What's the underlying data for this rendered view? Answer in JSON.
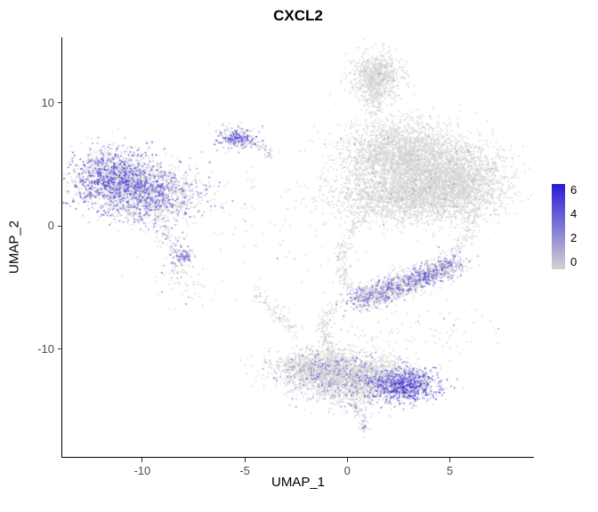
{
  "chart_data": {
    "type": "scatter",
    "title": "CXCL2",
    "xlabel": "UMAP_1",
    "ylabel": "UMAP_2",
    "x_range": [
      -13.9,
      9.1
    ],
    "y_range": [
      -18.8,
      15.3
    ],
    "x_ticks": [
      -10,
      -5,
      0,
      5
    ],
    "y_ticks": [
      -10,
      0,
      10
    ],
    "grid": false,
    "seed": 42,
    "legend": {
      "position": "right",
      "ticks": [
        0,
        2,
        4,
        6
      ],
      "vmin": 0,
      "vmax": 6,
      "color_low": "#d3d3d3",
      "color_high": "#2a1ad6"
    },
    "clusters": [
      {
        "name": "left-main-upper",
        "cx": -11.4,
        "cy": 3.9,
        "sx": 1.1,
        "sy": 1.15,
        "n": 1400,
        "frac": 0.5,
        "emax": 6
      },
      {
        "name": "left-main-lower",
        "cx": -9.6,
        "cy": 2.6,
        "sx": 1.2,
        "sy": 1.2,
        "n": 1400,
        "frac": 0.45,
        "emax": 5
      },
      {
        "name": "left-tail-knot",
        "cx": -8.0,
        "cy": -2.4,
        "sx": 0.25,
        "sy": 0.3,
        "n": 70,
        "frac": 0.75,
        "emax": 5
      },
      {
        "name": "small-top-left",
        "cx": -5.35,
        "cy": 7.1,
        "sx": 0.5,
        "sy": 0.45,
        "n": 260,
        "frac": 0.55,
        "emax": 6
      },
      {
        "name": "top-middle",
        "cx": 1.45,
        "cy": 12.1,
        "sx": 0.62,
        "sy": 0.95,
        "n": 800,
        "frac": 0.012,
        "emax": 3
      },
      {
        "name": "right-large-upper",
        "cx": 2.3,
        "cy": 5.8,
        "sx": 1.35,
        "sy": 1.35,
        "n": 1800,
        "frac": 0.015,
        "emax": 3
      },
      {
        "name": "right-large-mid",
        "cx": 4.3,
        "cy": 4.3,
        "sx": 1.5,
        "sy": 1.6,
        "n": 2200,
        "frac": 0.015,
        "emax": 3
      },
      {
        "name": "right-large-lower",
        "cx": 2.8,
        "cy": 2.2,
        "sx": 1.9,
        "sy": 1.0,
        "n": 1500,
        "frac": 0.02,
        "emax": 3
      },
      {
        "name": "right-large-east",
        "cx": 5.9,
        "cy": 3.4,
        "sx": 1.0,
        "sy": 1.4,
        "n": 700,
        "frac": 0.01,
        "emax": 3
      },
      {
        "name": "bottom-left-lobe",
        "cx": -1.4,
        "cy": -11.6,
        "sx": 1.1,
        "sy": 0.85,
        "n": 1200,
        "frac": 0.12,
        "emax": 4
      },
      {
        "name": "bottom-center-lobe",
        "cx": 0.6,
        "cy": -12.4,
        "sx": 1.4,
        "sy": 1.0,
        "n": 1800,
        "frac": 0.18,
        "emax": 4
      },
      {
        "name": "bottom-right-lobe",
        "cx": 2.7,
        "cy": -12.9,
        "sx": 0.85,
        "sy": 0.65,
        "n": 900,
        "frac": 0.7,
        "emax": 6
      },
      {
        "name": "bottom-tail-tip",
        "cx": 0.8,
        "cy": -16.4,
        "sx": 0.18,
        "sy": 0.25,
        "n": 25,
        "frac": 0.15,
        "emax": 6
      },
      {
        "name": "sparse-mid-left",
        "cx": -6.3,
        "cy": 1.5,
        "sx": 1.6,
        "sy": 1.8,
        "n": 60,
        "frac": 0.05,
        "emax": 3
      },
      {
        "name": "sparse-below-left",
        "cx": -8.0,
        "cy": -4.8,
        "sx": 1.0,
        "sy": 0.8,
        "n": 40,
        "frac": 0.1,
        "emax": 4
      },
      {
        "name": "sparse-center",
        "cx": -2.5,
        "cy": -1.5,
        "sx": 1.6,
        "sy": 1.6,
        "n": 35,
        "frac": 0.03,
        "emax": 3
      },
      {
        "name": "sparse-bottom-right",
        "cx": 4.8,
        "cy": -8.3,
        "sx": 1.3,
        "sy": 1.1,
        "n": 50,
        "frac": 0.1,
        "emax": 4
      },
      {
        "name": "sparse-mid-bottom",
        "cx": 1.5,
        "cy": -8.6,
        "sx": 1.2,
        "sy": 0.8,
        "n": 45,
        "frac": 0.08,
        "emax": 4
      }
    ],
    "trails": [
      {
        "name": "left-descending-tail",
        "pts": [
          [
            -9.2,
            0.2
          ],
          [
            -8.6,
            -1.3
          ],
          [
            -8.1,
            -2.7
          ],
          [
            -8.4,
            -4.3
          ]
        ],
        "w": 0.3,
        "n": 150,
        "frac": 0.25,
        "emax": 5
      },
      {
        "name": "small-topleft-wisp",
        "pts": [
          [
            -4.8,
            6.8
          ],
          [
            -4.1,
            6.2
          ],
          [
            -3.7,
            5.8
          ]
        ],
        "w": 0.18,
        "n": 50,
        "frac": 0.15,
        "emax": 4
      },
      {
        "name": "top-middle-neck",
        "pts": [
          [
            1.3,
            10.7
          ],
          [
            1.25,
            9.7
          ],
          [
            1.5,
            9.0
          ]
        ],
        "w": 0.2,
        "n": 70,
        "frac": 0.01,
        "emax": 2
      },
      {
        "name": "mid-streak",
        "pts": [
          [
            0.4,
            -6.1
          ],
          [
            1.6,
            -5.4
          ],
          [
            3.0,
            -4.6
          ],
          [
            4.3,
            -3.7
          ],
          [
            5.3,
            -3.0
          ]
        ],
        "w": 0.45,
        "n": 1500,
        "frac": 0.38,
        "emax": 5
      },
      {
        "name": "center-drop-connector",
        "pts": [
          [
            0.7,
            0.8
          ],
          [
            -0.2,
            -1.5
          ],
          [
            -0.3,
            -3.5
          ],
          [
            0.2,
            -5.3
          ]
        ],
        "w": 0.18,
        "n": 160,
        "frac": 0.02,
        "emax": 3
      },
      {
        "name": "streak-to-bottom-connector",
        "pts": [
          [
            -0.5,
            -6.2
          ],
          [
            -1.2,
            -7.9
          ],
          [
            -0.9,
            -9.7
          ]
        ],
        "w": 0.2,
        "n": 120,
        "frac": 0.03,
        "emax": 3
      },
      {
        "name": "right-side-connector",
        "pts": [
          [
            6.3,
            1.4
          ],
          [
            5.9,
            -0.6
          ],
          [
            5.3,
            -2.2
          ]
        ],
        "w": 0.22,
        "n": 90,
        "frac": 0.02,
        "emax": 3
      },
      {
        "name": "left-diagonal-wisp",
        "pts": [
          [
            -4.6,
            -5.2
          ],
          [
            -3.6,
            -6.8
          ],
          [
            -2.6,
            -8.6
          ]
        ],
        "w": 0.25,
        "n": 100,
        "frac": 0.05,
        "emax": 3
      },
      {
        "name": "bottom-tail",
        "pts": [
          [
            0.3,
            -14.2
          ],
          [
            0.6,
            -15.3
          ],
          [
            0.8,
            -16.2
          ]
        ],
        "w": 0.15,
        "n": 70,
        "frac": 0.08,
        "emax": 5
      }
    ]
  }
}
